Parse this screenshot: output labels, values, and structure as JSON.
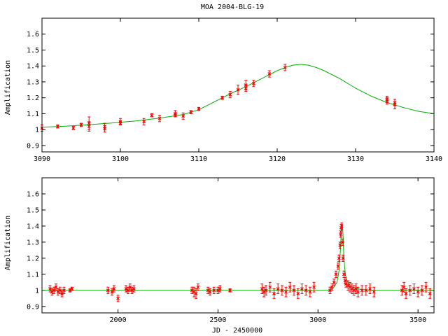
{
  "chart_data": [
    {
      "type": "scatter",
      "title": "MOA 2004-BLG-19",
      "xlabel": "",
      "ylabel": "Amplification",
      "xlim": [
        3090,
        3140
      ],
      "ylim": [
        0.86,
        1.7
      ],
      "xticks": [
        "3090",
        "3100",
        "3110",
        "3120",
        "3130",
        "3140"
      ],
      "xtick_values": [
        3090,
        3100,
        3110,
        3120,
        3130,
        3140
      ],
      "yticks": [
        "0.9",
        "1",
        "1.1",
        "1.2",
        "1.3",
        "1.4",
        "1.5",
        "1.6"
      ],
      "ytick_values": [
        0.9,
        1.0,
        1.1,
        1.2,
        1.3,
        1.4,
        1.5,
        1.6
      ],
      "model": {
        "name": "",
        "color": "#00b000",
        "x": [
          3090,
          3093,
          3096,
          3099,
          3102,
          3105,
          3108,
          3110,
          3112,
          3114,
          3116,
          3118,
          3120,
          3121,
          3122,
          3123,
          3124,
          3125,
          3126,
          3128,
          3130,
          3132,
          3134,
          3136,
          3138,
          3140
        ],
        "y": [
          1.015,
          1.022,
          1.031,
          1.042,
          1.055,
          1.072,
          1.095,
          1.125,
          1.175,
          1.225,
          1.27,
          1.32,
          1.37,
          1.39,
          1.405,
          1.41,
          1.405,
          1.39,
          1.37,
          1.32,
          1.26,
          1.21,
          1.17,
          1.14,
          1.115,
          1.1
        ]
      },
      "points": {
        "name": "",
        "color": "#ff0000",
        "x": [
          3090,
          3092,
          3094,
          3095,
          3096,
          3096,
          3098,
          3098,
          3100,
          3100,
          3103,
          3104,
          3105,
          3107,
          3107,
          3108,
          3109,
          3110,
          3113,
          3114,
          3115,
          3116,
          3116,
          3117,
          3119,
          3121,
          3134,
          3134,
          3135,
          3135
        ],
        "y": [
          1.01,
          1.02,
          1.01,
          1.03,
          1.04,
          1.02,
          1.02,
          1.005,
          1.05,
          1.04,
          1.05,
          1.09,
          1.07,
          1.1,
          1.09,
          1.085,
          1.11,
          1.13,
          1.2,
          1.22,
          1.25,
          1.28,
          1.26,
          1.29,
          1.35,
          1.39,
          1.18,
          1.19,
          1.17,
          1.16
        ],
        "err": [
          0.02,
          0.01,
          0.01,
          0.01,
          0.04,
          0.03,
          0.02,
          0.02,
          0.02,
          0.01,
          0.02,
          0.01,
          0.02,
          0.02,
          0.01,
          0.02,
          0.01,
          0.01,
          0.01,
          0.02,
          0.03,
          0.03,
          0.02,
          0.02,
          0.02,
          0.02,
          0.02,
          0.02,
          0.02,
          0.03
        ]
      }
    },
    {
      "type": "scatter",
      "title": "",
      "xlabel": "JD - 2450000",
      "ylabel": "Amplification",
      "xlim": [
        1620,
        3580
      ],
      "ylim": [
        0.86,
        1.7
      ],
      "xticks": [
        "2000",
        "2500",
        "3000",
        "3500"
      ],
      "xtick_values": [
        2000,
        2500,
        3000,
        3500
      ],
      "yticks": [
        "0.9",
        "1",
        "1.1",
        "1.2",
        "1.3",
        "1.4",
        "1.5",
        "1.6"
      ],
      "ytick_values": [
        0.9,
        1.0,
        1.1,
        1.2,
        1.3,
        1.4,
        1.5,
        1.6
      ],
      "model": {
        "name": "",
        "color": "#00b000",
        "x": [
          1620,
          3060,
          3080,
          3095,
          3105,
          3112,
          3117,
          3120,
          3123,
          3126,
          3129,
          3133,
          3137,
          3145,
          3160,
          3190,
          3250,
          3580
        ],
        "y": [
          1.0,
          1.0,
          1.02,
          1.05,
          1.12,
          1.25,
          1.38,
          1.41,
          1.4,
          1.32,
          1.22,
          1.15,
          1.1,
          1.06,
          1.03,
          1.01,
          1.0,
          1.0
        ]
      },
      "points": {
        "name": "",
        "color": "#ff0000",
        "x": [
          1660,
          1670,
          1680,
          1690,
          1700,
          1710,
          1720,
          1730,
          1760,
          1770,
          1950,
          1970,
          1980,
          2000,
          2040,
          2050,
          2060,
          2070,
          2080,
          2370,
          2380,
          2390,
          2400,
          2450,
          2460,
          2480,
          2500,
          2510,
          2560,
          2720,
          2730,
          2740,
          2760,
          2780,
          2800,
          2820,
          2840,
          2860,
          2880,
          2900,
          2920,
          2940,
          2960,
          2980,
          3060,
          3070,
          3080,
          3090,
          3100,
          3105,
          3110,
          3113,
          3116,
          3119,
          3122,
          3125,
          3130,
          3135,
          3140,
          3150,
          3160,
          3170,
          3180,
          3190,
          3200,
          3220,
          3240,
          3260,
          3280,
          3420,
          3430,
          3440,
          3460,
          3480,
          3500,
          3520,
          3540,
          3560
        ],
        "y": [
          1.01,
          0.99,
          1.0,
          1.02,
          0.99,
          1.0,
          0.98,
          1.0,
          1.0,
          1.01,
          1.0,
          0.99,
          1.01,
          0.95,
          1.01,
          1.0,
          1.02,
          1.0,
          1.01,
          1.0,
          0.99,
          0.98,
          1.02,
          1.0,
          0.99,
          1.0,
          1.0,
          1.01,
          1.0,
          1.01,
          0.99,
          1.0,
          1.02,
          0.98,
          1.01,
          1.0,
          0.99,
          1.02,
          1.0,
          0.98,
          1.01,
          1.0,
          0.99,
          1.02,
          1.0,
          1.02,
          1.05,
          1.1,
          1.15,
          1.2,
          1.28,
          1.35,
          1.39,
          1.4,
          1.3,
          1.2,
          1.1,
          1.06,
          1.04,
          1.03,
          1.02,
          1.01,
          1.0,
          1.01,
          0.99,
          1.0,
          1.0,
          1.01,
          0.99,
          1.0,
          1.02,
          0.98,
          1.0,
          1.01,
          0.99,
          1.0,
          1.02,
          0.98
        ],
        "err": [
          0.02,
          0.02,
          0.02,
          0.02,
          0.02,
          0.02,
          0.02,
          0.02,
          0.01,
          0.01,
          0.02,
          0.02,
          0.02,
          0.02,
          0.02,
          0.02,
          0.02,
          0.02,
          0.02,
          0.02,
          0.03,
          0.03,
          0.02,
          0.02,
          0.02,
          0.02,
          0.02,
          0.02,
          0.01,
          0.03,
          0.03,
          0.03,
          0.03,
          0.03,
          0.03,
          0.03,
          0.03,
          0.03,
          0.03,
          0.03,
          0.03,
          0.03,
          0.03,
          0.03,
          0.02,
          0.02,
          0.02,
          0.02,
          0.02,
          0.02,
          0.02,
          0.02,
          0.02,
          0.02,
          0.02,
          0.02,
          0.02,
          0.02,
          0.02,
          0.03,
          0.03,
          0.03,
          0.03,
          0.03,
          0.03,
          0.03,
          0.03,
          0.03,
          0.03,
          0.03,
          0.03,
          0.03,
          0.03,
          0.03,
          0.03,
          0.03,
          0.03,
          0.03
        ]
      }
    }
  ]
}
